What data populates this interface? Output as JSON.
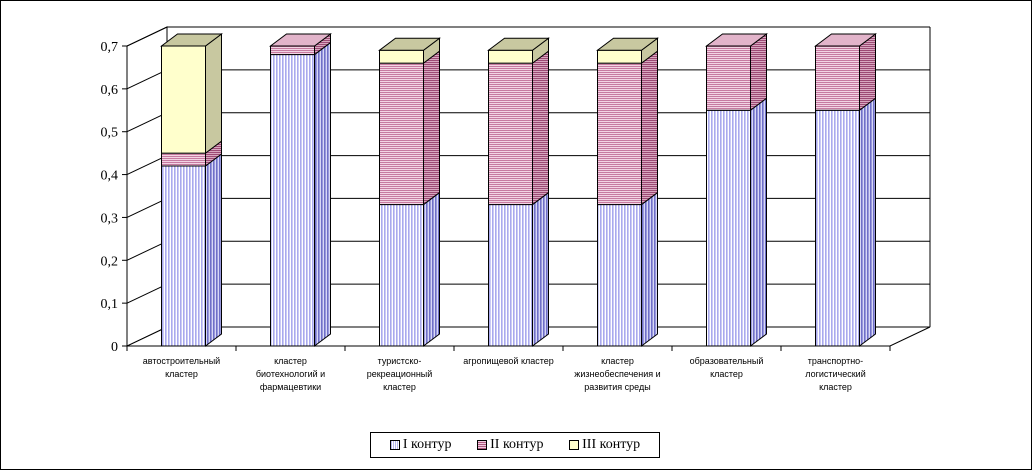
{
  "chart_data": {
    "type": "bar",
    "stacked": true,
    "three_d": true,
    "categories": [
      [
        "автостроительный",
        "кластер"
      ],
      [
        "кластер",
        "биотехнологий  и",
        "фармацевтики"
      ],
      [
        "туристско-",
        "рекреационный",
        "кластер"
      ],
      [
        "агропищевой  кластер"
      ],
      [
        "кластер",
        "жизнеобеспечения  и",
        "развития  среды"
      ],
      [
        "образовательный",
        "кластер"
      ],
      [
        "транспортно-",
        "логистический",
        "кластер"
      ]
    ],
    "series": [
      {
        "name": "I контур",
        "values": [
          0.42,
          0.68,
          0.33,
          0.33,
          0.33,
          0.55,
          0.55
        ]
      },
      {
        "name": "II контур",
        "values": [
          0.03,
          0.02,
          0.33,
          0.33,
          0.33,
          0.15,
          0.15
        ]
      },
      {
        "name": "III контур",
        "values": [
          0.25,
          0.0,
          0.03,
          0.03,
          0.03,
          0.0,
          0.0
        ]
      }
    ],
    "ylim": [
      0,
      0.7
    ],
    "yticks": [
      "0",
      "0,1",
      "0,2",
      "0,3",
      "0,4",
      "0,5",
      "0,6",
      "0,7"
    ],
    "grid": true,
    "legend_position": "bottom",
    "colors": {
      "series1_fill": "#b7b7f0",
      "series1_side": "#8a8ad8",
      "series1_top": "#ccccf6",
      "series2_fill": "#d9a0bc",
      "series2_side": "#b4658c",
      "series2_top": "#e2b4ca",
      "series3_fill": "#ffffcc",
      "series3_side": "#c8c8a0",
      "series3_top": "#c8c8a0"
    }
  },
  "legend": {
    "items": [
      "I контур",
      "II контур",
      "III контур"
    ]
  }
}
